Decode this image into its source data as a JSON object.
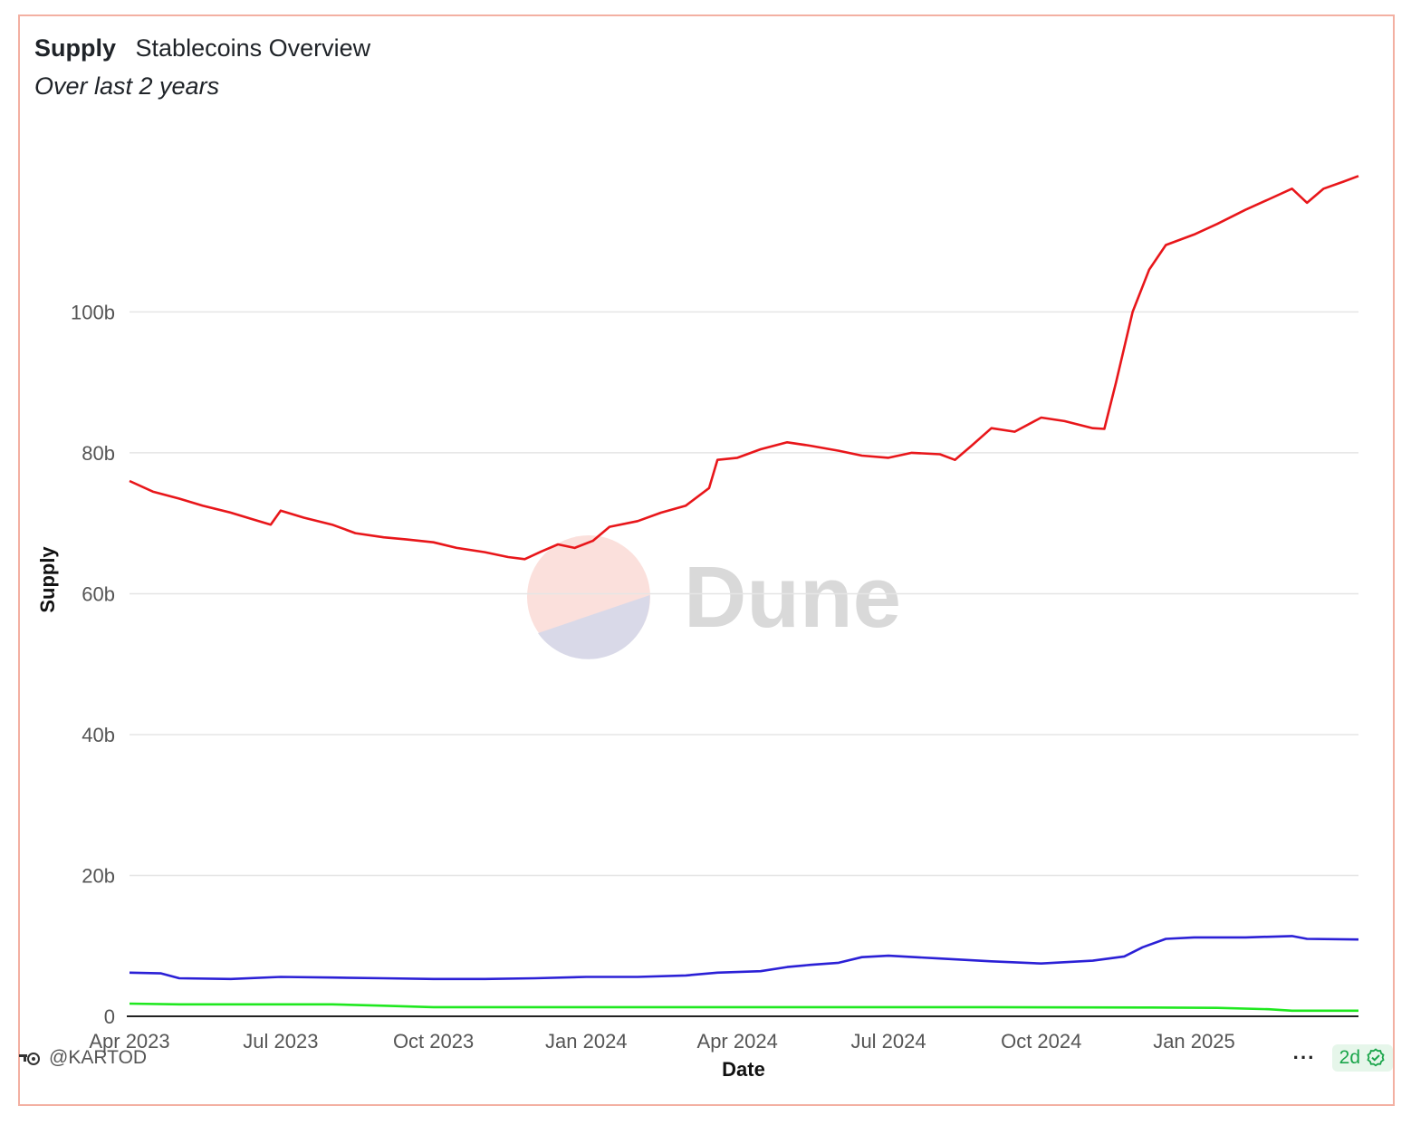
{
  "header": {
    "title": "Supply",
    "subtitle_inline": "Stablecoins Overview",
    "period": "Over last 2 years"
  },
  "footer": {
    "author": "@KARTOD",
    "freshness": "2d",
    "more_label": "···"
  },
  "watermark": {
    "text": "Dune"
  },
  "colors": {
    "border": "#f3b0a2",
    "series_red": "#e8161a",
    "series_blue": "#2b20d6",
    "series_green": "#1fe81f",
    "grid": "#e5e5e5"
  },
  "chart_data": {
    "type": "line",
    "xlabel": "Date",
    "ylabel": "Supply",
    "ylim": [
      0,
      125000000000
    ],
    "xlim": [
      "2023-04-01",
      "2025-04-10"
    ],
    "y_ticks": [
      {
        "value": 0,
        "label": "0"
      },
      {
        "value": 20000000000,
        "label": "20b"
      },
      {
        "value": 40000000000,
        "label": "40b"
      },
      {
        "value": 60000000000,
        "label": "60b"
      },
      {
        "value": 80000000000,
        "label": "80b"
      },
      {
        "value": 100000000000,
        "label": "100b"
      }
    ],
    "x_ticks": [
      {
        "date": "2023-04-01",
        "label": "Apr 2023"
      },
      {
        "date": "2023-07-01",
        "label": "Jul 2023"
      },
      {
        "date": "2023-10-01",
        "label": "Oct 2023"
      },
      {
        "date": "2024-01-01",
        "label": "Jan 2024"
      },
      {
        "date": "2024-04-01",
        "label": "Apr 2024"
      },
      {
        "date": "2024-07-01",
        "label": "Jul 2024"
      },
      {
        "date": "2024-10-01",
        "label": "Oct 2024"
      },
      {
        "date": "2025-01-01",
        "label": "Jan 2025"
      }
    ],
    "grid": true,
    "legend": "none",
    "series": [
      {
        "color": "#e8161a",
        "points": [
          [
            "2023-04-01",
            76.0
          ],
          [
            "2023-04-15",
            74.5
          ],
          [
            "2023-05-01",
            73.5
          ],
          [
            "2023-05-15",
            72.5
          ],
          [
            "2023-06-01",
            71.5
          ],
          [
            "2023-06-15",
            70.5
          ],
          [
            "2023-06-25",
            69.8
          ],
          [
            "2023-07-01",
            71.8
          ],
          [
            "2023-07-15",
            70.8
          ],
          [
            "2023-08-01",
            69.8
          ],
          [
            "2023-08-15",
            68.6
          ],
          [
            "2023-09-01",
            68.0
          ],
          [
            "2023-09-15",
            67.7
          ],
          [
            "2023-10-01",
            67.3
          ],
          [
            "2023-10-15",
            66.5
          ],
          [
            "2023-11-01",
            65.9
          ],
          [
            "2023-11-15",
            65.2
          ],
          [
            "2023-11-25",
            64.9
          ],
          [
            "2023-12-05",
            66.0
          ],
          [
            "2023-12-15",
            67.0
          ],
          [
            "2023-12-25",
            66.5
          ],
          [
            "2024-01-05",
            67.5
          ],
          [
            "2024-01-15",
            69.5
          ],
          [
            "2024-02-01",
            70.3
          ],
          [
            "2024-02-15",
            71.5
          ],
          [
            "2024-03-01",
            72.5
          ],
          [
            "2024-03-15",
            75.0
          ],
          [
            "2024-03-20",
            79.0
          ],
          [
            "2024-04-01",
            79.3
          ],
          [
            "2024-04-15",
            80.5
          ],
          [
            "2024-05-01",
            81.5
          ],
          [
            "2024-05-15",
            81.0
          ],
          [
            "2024-06-01",
            80.3
          ],
          [
            "2024-06-15",
            79.6
          ],
          [
            "2024-07-01",
            79.3
          ],
          [
            "2024-07-15",
            80.0
          ],
          [
            "2024-08-01",
            79.8
          ],
          [
            "2024-08-10",
            79.0
          ],
          [
            "2024-08-20",
            81.0
          ],
          [
            "2024-09-01",
            83.5
          ],
          [
            "2024-09-15",
            83.0
          ],
          [
            "2024-10-01",
            85.0
          ],
          [
            "2024-10-15",
            84.5
          ],
          [
            "2024-11-01",
            83.5
          ],
          [
            "2024-11-08",
            83.4
          ],
          [
            "2024-11-15",
            90.0
          ],
          [
            "2024-11-25",
            100.0
          ],
          [
            "2024-12-05",
            106.0
          ],
          [
            "2024-12-15",
            109.5
          ],
          [
            "2025-01-01",
            111.0
          ],
          [
            "2025-01-15",
            112.5
          ],
          [
            "2025-02-01",
            114.5
          ],
          [
            "2025-02-15",
            116.0
          ],
          [
            "2025-03-01",
            117.5
          ],
          [
            "2025-03-10",
            115.5
          ],
          [
            "2025-03-20",
            117.5
          ],
          [
            "2025-04-01",
            118.5
          ],
          [
            "2025-04-10",
            119.3
          ]
        ]
      },
      {
        "color": "#2b20d6",
        "points": [
          [
            "2023-04-01",
            6.2
          ],
          [
            "2023-04-20",
            6.1
          ],
          [
            "2023-05-01",
            5.4
          ],
          [
            "2023-06-01",
            5.3
          ],
          [
            "2023-07-01",
            5.6
          ],
          [
            "2023-08-01",
            5.5
          ],
          [
            "2023-09-01",
            5.4
          ],
          [
            "2023-10-01",
            5.3
          ],
          [
            "2023-11-01",
            5.3
          ],
          [
            "2023-12-01",
            5.4
          ],
          [
            "2024-01-01",
            5.6
          ],
          [
            "2024-02-01",
            5.6
          ],
          [
            "2024-03-01",
            5.8
          ],
          [
            "2024-03-20",
            6.2
          ],
          [
            "2024-04-15",
            6.4
          ],
          [
            "2024-05-01",
            7.0
          ],
          [
            "2024-05-15",
            7.3
          ],
          [
            "2024-06-01",
            7.6
          ],
          [
            "2024-06-15",
            8.4
          ],
          [
            "2024-07-01",
            8.6
          ],
          [
            "2024-08-01",
            8.2
          ],
          [
            "2024-09-01",
            7.8
          ],
          [
            "2024-10-01",
            7.5
          ],
          [
            "2024-11-01",
            7.9
          ],
          [
            "2024-11-20",
            8.5
          ],
          [
            "2024-12-01",
            9.8
          ],
          [
            "2024-12-15",
            11.0
          ],
          [
            "2025-01-01",
            11.2
          ],
          [
            "2025-02-01",
            11.2
          ],
          [
            "2025-03-01",
            11.4
          ],
          [
            "2025-03-10",
            11.0
          ],
          [
            "2025-04-10",
            10.9
          ]
        ]
      },
      {
        "color": "#1fe81f",
        "points": [
          [
            "2023-04-01",
            1.8
          ],
          [
            "2023-05-01",
            1.7
          ],
          [
            "2023-08-01",
            1.7
          ],
          [
            "2023-09-01",
            1.5
          ],
          [
            "2023-10-01",
            1.3
          ],
          [
            "2024-03-01",
            1.3
          ],
          [
            "2024-06-01",
            1.3
          ],
          [
            "2024-09-01",
            1.3
          ],
          [
            "2024-12-01",
            1.25
          ],
          [
            "2025-01-15",
            1.2
          ],
          [
            "2025-02-15",
            1.0
          ],
          [
            "2025-03-01",
            0.8
          ],
          [
            "2025-04-10",
            0.8
          ]
        ]
      }
    ]
  }
}
